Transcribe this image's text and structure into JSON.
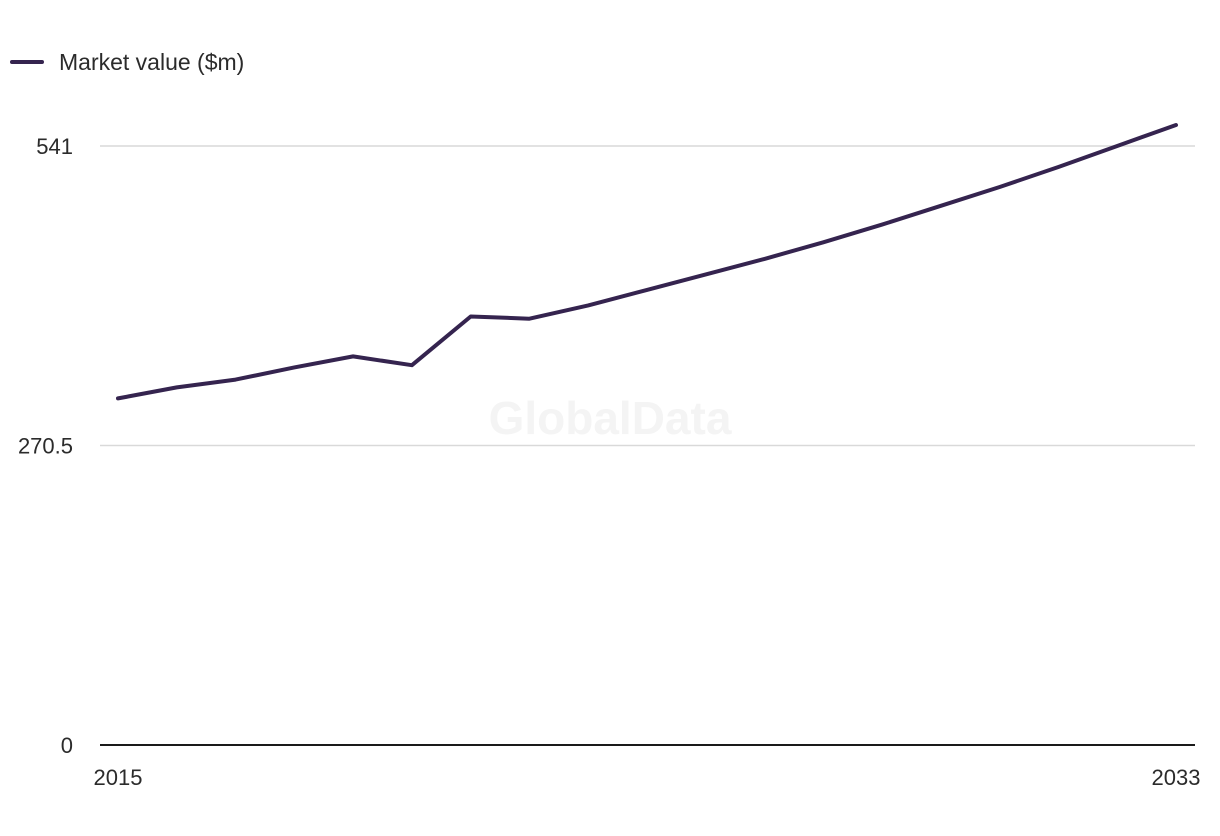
{
  "chart_data": {
    "type": "line",
    "title": "",
    "xlabel": "",
    "ylabel": "",
    "x": [
      2015,
      2016,
      2017,
      2018,
      2019,
      2020,
      2021,
      2022,
      2023,
      2024,
      2025,
      2026,
      2027,
      2028,
      2029,
      2030,
      2031,
      2032,
      2033
    ],
    "series": [
      {
        "name": "Market value ($m)",
        "color": "#35244f",
        "values": [
          313,
          323,
          330,
          341,
          351,
          343,
          387,
          385,
          397,
          411,
          425,
          439,
          454,
          470,
          487,
          504,
          522,
          541,
          560
        ]
      }
    ],
    "x_tick_labels": [
      "2015",
      "2033"
    ],
    "y_tick_labels": [
      "0",
      "270.5",
      "541"
    ],
    "y_ticks": [
      0,
      270.5,
      541
    ],
    "ylim": [
      0,
      541
    ],
    "grid": true,
    "legend_position": "top-left",
    "watermark": "GlobalData",
    "colors": {
      "line": "#35244f",
      "grid": "#d9d9d9",
      "baseline": "#1a1a1a",
      "text": "#2b2b2b"
    }
  }
}
